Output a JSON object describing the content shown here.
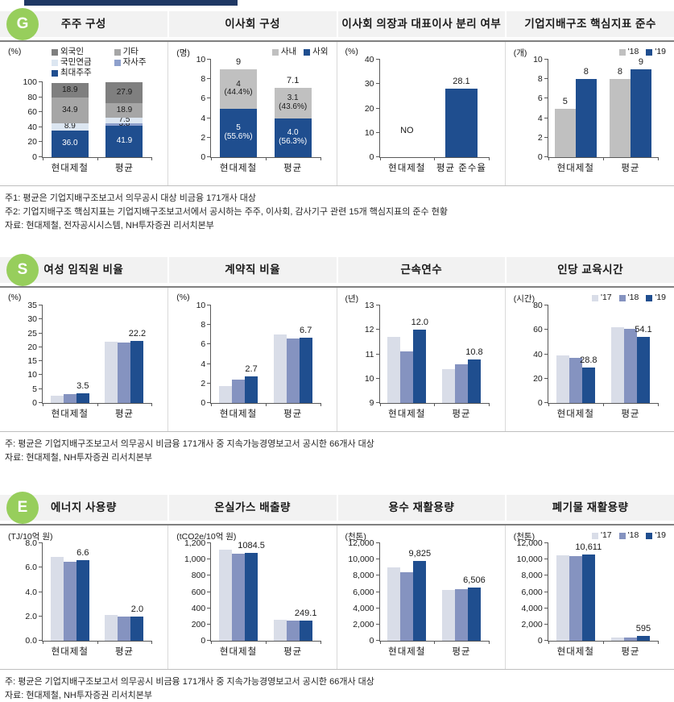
{
  "page": {
    "top_bar_color": "#1f3864"
  },
  "palette": {
    "navy": "#1f4e8f",
    "slate": "#8593c0",
    "light": "#d9dde8",
    "silver": "#c0c0c0",
    "gray": "#a6a6a6",
    "darkgray": "#7f7f7f",
    "pale": "#dce6f1",
    "periwinkle": "#8ea0cc"
  },
  "sections": [
    {
      "badge": "G",
      "badge_color": "#97ce5c",
      "notes": [
        "주1: 평균은 기업지배구조보고서 의무공시 대상 비금융 171개사 대상",
        "주2: 기업지배구조 핵심지표는 기업지배구조보고서에서 공시하는 주주, 이사회, 감사기구 관련 15개 핵심지표의 준수 현황",
        "자료: 현대제철, 전자공시시스템, NH투자증권 리서치본부"
      ]
    },
    {
      "badge": "S",
      "badge_color": "#97ce5c",
      "notes": [
        "주: 평균은 기업지배구조보고서 의무공시 비금융 171개사 중 지속가능경영보고서 공시한 66개사 대상",
        "자료: 현대제철, NH투자증권 리서치본부"
      ]
    },
    {
      "badge": "E",
      "badge_color": "#97ce5c",
      "notes": [
        "주: 평균은 기업지배구조보고서 의무공시 비금융 171개사 중 지속가능경영보고서 공시한 66개사 대상",
        "자료: 현대제철, NH투자증권 리서치본부"
      ]
    }
  ],
  "chart_data": [
    {
      "section": "G",
      "type": "stacked_bar",
      "title": "주주 구성",
      "unit": "(%)",
      "ylim": [
        0,
        100
      ],
      "yticks": [
        0,
        20,
        40,
        60,
        80,
        100
      ],
      "ytick_labels": [
        "0",
        "20",
        "40",
        "60",
        "80",
        "100"
      ],
      "categories": [
        "현대제철",
        "평균"
      ],
      "legend": [
        {
          "label": "외국인",
          "color": "darkgray"
        },
        {
          "label": "기타",
          "color": "gray"
        },
        {
          "label": "국민연금",
          "color": "pale"
        },
        {
          "label": "자사주",
          "color": "periwinkle"
        },
        {
          "label": "최대주주",
          "color": "navy"
        }
      ],
      "legend_layout": "grid2",
      "series": [
        {
          "name": "최대주주",
          "color": "navy",
          "tc": "#ffffff",
          "values": [
            36.0,
            41.9
          ],
          "labels": [
            "36.0",
            "41.9"
          ]
        },
        {
          "name": "자사주",
          "color": "periwinkle",
          "tc": "#1a1a1a",
          "values": [
            0,
            3.8
          ],
          "labels": [
            null,
            "3.8"
          ]
        },
        {
          "name": "국민연금",
          "color": "pale",
          "tc": "#1a1a1a",
          "values": [
            8.9,
            7.5
          ],
          "labels": [
            "8.9",
            "7.5"
          ]
        },
        {
          "name": "기타",
          "color": "gray",
          "tc": "#1a1a1a",
          "values": [
            34.9,
            18.9
          ],
          "labels": [
            "34.9",
            "18.9"
          ]
        },
        {
          "name": "외국인",
          "color": "darkgray",
          "tc": "#1a1a1a",
          "values": [
            18.9,
            27.9
          ],
          "labels": [
            "18.9",
            "27.9"
          ]
        }
      ]
    },
    {
      "section": "G",
      "type": "stacked_bar",
      "title": "이사회 구성",
      "unit": "(명)",
      "ylim": [
        0,
        10
      ],
      "yticks": [
        0,
        2,
        4,
        6,
        8,
        10
      ],
      "ytick_labels": [
        "0",
        "2",
        "4",
        "6",
        "8",
        "10"
      ],
      "categories": [
        "현대제철",
        "평균"
      ],
      "legend": [
        {
          "label": "사내",
          "color": "silver"
        },
        {
          "label": "사외",
          "color": "navy"
        }
      ],
      "legend_layout": "row",
      "series": [
        {
          "name": "사외",
          "color": "navy",
          "tc": "#ffffff",
          "values": [
            5,
            4.0
          ],
          "labels": [
            "5\n(55.6%)",
            "4.0\n(56.3%)"
          ]
        },
        {
          "name": "사내",
          "color": "silver",
          "tc": "#1a1a1a",
          "values": [
            4,
            3.1
          ],
          "labels": [
            "4\n(44.4%)",
            "3.1\n(43.6%)"
          ]
        }
      ],
      "totals": [
        "9",
        "7.1"
      ]
    },
    {
      "section": "G",
      "type": "grouped_bar",
      "title": "이사회 의장과 대표이사 분리 여부",
      "unit": "(%)",
      "ylim": [
        0,
        40
      ],
      "yticks": [
        0,
        10,
        20,
        30,
        40
      ],
      "ytick_labels": [
        "0",
        "10",
        "20",
        "30",
        "40"
      ],
      "categories": [
        "현대제철",
        "평균 준수율"
      ],
      "series": [
        {
          "name": "준수율",
          "color": "navy",
          "values": [
            null,
            28.1
          ]
        }
      ],
      "bar_labels": [
        [
          "NO"
        ],
        [
          "28.1"
        ]
      ]
    },
    {
      "section": "G",
      "type": "grouped_bar",
      "title": "기업지배구조 핵심지표 준수",
      "unit": "(개)",
      "ylim": [
        0,
        10
      ],
      "yticks": [
        0,
        2,
        4,
        6,
        8,
        10
      ],
      "ytick_labels": [
        "0",
        "2",
        "4",
        "6",
        "8",
        "10"
      ],
      "categories": [
        "현대제철",
        "평균"
      ],
      "legend": [
        {
          "label": "'18",
          "color": "silver"
        },
        {
          "label": "'19",
          "color": "navy"
        }
      ],
      "legend_layout": "row",
      "series": [
        {
          "name": "'18",
          "color": "silver",
          "values": [
            5,
            8
          ]
        },
        {
          "name": "'19",
          "color": "navy",
          "values": [
            8,
            9
          ]
        }
      ],
      "bar_labels": [
        [
          "5",
          "8"
        ],
        [
          "8",
          "9"
        ]
      ]
    },
    {
      "section": "S",
      "type": "grouped_bar",
      "title": "여성 임직원 비율",
      "unit": "(%)",
      "ylim": [
        0,
        35
      ],
      "yticks": [
        0,
        5,
        10,
        15,
        20,
        25,
        30,
        35
      ],
      "ytick_labels": [
        "0",
        "5",
        "10",
        "15",
        "20",
        "25",
        "30",
        "35"
      ],
      "categories": [
        "현대제철",
        "평균"
      ],
      "series": [
        {
          "name": "'17",
          "color": "light",
          "values": [
            2.6,
            22.0
          ]
        },
        {
          "name": "'18",
          "color": "slate",
          "values": [
            3.1,
            21.8
          ]
        },
        {
          "name": "'19",
          "color": "navy",
          "values": [
            3.5,
            22.2
          ]
        }
      ],
      "bar_labels": [
        [
          null,
          null,
          "3.5"
        ],
        [
          null,
          null,
          "22.2"
        ]
      ]
    },
    {
      "section": "S",
      "type": "grouped_bar",
      "title": "계약직 비율",
      "unit": "(%)",
      "ylim": [
        0,
        10
      ],
      "yticks": [
        0,
        2,
        4,
        6,
        8,
        10
      ],
      "ytick_labels": [
        "0",
        "2",
        "4",
        "6",
        "8",
        "10"
      ],
      "categories": [
        "현대제철",
        "평균"
      ],
      "series": [
        {
          "name": "'17",
          "color": "light",
          "values": [
            1.7,
            7.0
          ]
        },
        {
          "name": "'18",
          "color": "slate",
          "values": [
            2.4,
            6.6
          ]
        },
        {
          "name": "'19",
          "color": "navy",
          "values": [
            2.7,
            6.7
          ]
        }
      ],
      "bar_labels": [
        [
          null,
          null,
          "2.7"
        ],
        [
          null,
          null,
          "6.7"
        ]
      ]
    },
    {
      "section": "S",
      "type": "grouped_bar",
      "title": "근속연수",
      "unit": "(년)",
      "ylim": [
        9,
        13
      ],
      "yticks": [
        9,
        10,
        11,
        12,
        13
      ],
      "ytick_labels": [
        "9",
        "10",
        "11",
        "12",
        "13"
      ],
      "categories": [
        "현대제철",
        "평균"
      ],
      "series": [
        {
          "name": "'17",
          "color": "light",
          "values": [
            11.7,
            10.4
          ]
        },
        {
          "name": "'18",
          "color": "slate",
          "values": [
            11.1,
            10.6
          ]
        },
        {
          "name": "'19",
          "color": "navy",
          "values": [
            12.0,
            10.8
          ]
        }
      ],
      "bar_labels": [
        [
          null,
          null,
          "12.0"
        ],
        [
          null,
          null,
          "10.8"
        ]
      ]
    },
    {
      "section": "S",
      "type": "grouped_bar",
      "title": "인당 교육시간",
      "unit": "(시간)",
      "ylim": [
        0,
        80
      ],
      "yticks": [
        0,
        20,
        40,
        60,
        80
      ],
      "ytick_labels": [
        "0",
        "20",
        "40",
        "60",
        "80"
      ],
      "categories": [
        "현대제철",
        "평균"
      ],
      "legend": [
        {
          "label": "'17",
          "color": "light"
        },
        {
          "label": "'18",
          "color": "slate"
        },
        {
          "label": "'19",
          "color": "navy"
        }
      ],
      "legend_layout": "row",
      "series": [
        {
          "name": "'17",
          "color": "light",
          "values": [
            39,
            62
          ]
        },
        {
          "name": "'18",
          "color": "slate",
          "values": [
            37,
            61
          ]
        },
        {
          "name": "'19",
          "color": "navy",
          "values": [
            28.8,
            54.1
          ]
        }
      ],
      "bar_labels": [
        [
          null,
          null,
          "28.8"
        ],
        [
          null,
          null,
          "54.1"
        ]
      ]
    },
    {
      "section": "E",
      "type": "grouped_bar",
      "title": "에너지 사용량",
      "unit": "(TJ/10억 원)",
      "ylim": [
        0,
        8
      ],
      "yticks": [
        0,
        2,
        4,
        6,
        8
      ],
      "ytick_labels": [
        "0.0",
        "2.0",
        "4.0",
        "6.0",
        "8.0"
      ],
      "categories": [
        "현대제철",
        "평균"
      ],
      "series": [
        {
          "name": "'17",
          "color": "light",
          "values": [
            6.9,
            2.1
          ]
        },
        {
          "name": "'18",
          "color": "slate",
          "values": [
            6.5,
            2.0
          ]
        },
        {
          "name": "'19",
          "color": "navy",
          "values": [
            6.6,
            2.0
          ]
        }
      ],
      "bar_labels": [
        [
          null,
          null,
          "6.6"
        ],
        [
          null,
          null,
          "2.0"
        ]
      ]
    },
    {
      "section": "E",
      "type": "grouped_bar",
      "title": "온실가스 배출량",
      "unit": "(tCO2e/10억 원)",
      "ylim": [
        0,
        1200
      ],
      "yticks": [
        0,
        200,
        400,
        600,
        800,
        1000,
        1200
      ],
      "ytick_labels": [
        "0",
        "200",
        "400",
        "600",
        "800",
        "1,000",
        "1,200"
      ],
      "categories": [
        "현대제철",
        "평균"
      ],
      "series": [
        {
          "name": "'17",
          "color": "light",
          "values": [
            1125,
            260
          ]
        },
        {
          "name": "'18",
          "color": "slate",
          "values": [
            1070,
            245
          ]
        },
        {
          "name": "'19",
          "color": "navy",
          "values": [
            1084.5,
            249.1
          ]
        }
      ],
      "bar_labels": [
        [
          null,
          null,
          "1084.5"
        ],
        [
          null,
          null,
          "249.1"
        ]
      ]
    },
    {
      "section": "E",
      "type": "grouped_bar",
      "title": "용수 재활용량",
      "unit": "(천톤)",
      "ylim": [
        0,
        12000
      ],
      "yticks": [
        0,
        2000,
        4000,
        6000,
        8000,
        10000,
        12000
      ],
      "ytick_labels": [
        "0",
        "2,000",
        "4,000",
        "6,000",
        "8,000",
        "10,000",
        "12,000"
      ],
      "categories": [
        "현대제철",
        "평균"
      ],
      "series": [
        {
          "name": "'17",
          "color": "light",
          "values": [
            9000,
            6250
          ]
        },
        {
          "name": "'18",
          "color": "slate",
          "values": [
            8400,
            6350
          ]
        },
        {
          "name": "'19",
          "color": "navy",
          "values": [
            9825,
            6506
          ]
        }
      ],
      "bar_labels": [
        [
          null,
          null,
          "9,825"
        ],
        [
          null,
          null,
          "6,506"
        ]
      ]
    },
    {
      "section": "E",
      "type": "grouped_bar",
      "title": "폐기물 재활용량",
      "unit": "(천톤)",
      "ylim": [
        0,
        12000
      ],
      "yticks": [
        0,
        2000,
        4000,
        6000,
        8000,
        10000,
        12000
      ],
      "ytick_labels": [
        "0",
        "2,000",
        "4,000",
        "6,000",
        "8,000",
        "10,000",
        "12,000"
      ],
      "categories": [
        "현대제철",
        "평균"
      ],
      "legend": [
        {
          "label": "'17",
          "color": "light"
        },
        {
          "label": "'18",
          "color": "slate"
        },
        {
          "label": "'19",
          "color": "navy"
        }
      ],
      "legend_layout": "row",
      "series": [
        {
          "name": "'17",
          "color": "light",
          "values": [
            10500,
            390
          ]
        },
        {
          "name": "'18",
          "color": "slate",
          "values": [
            10450,
            430
          ]
        },
        {
          "name": "'19",
          "color": "navy",
          "values": [
            10611,
            595
          ]
        }
      ],
      "bar_labels": [
        [
          null,
          null,
          "10,611"
        ],
        [
          null,
          null,
          "595"
        ]
      ]
    }
  ]
}
